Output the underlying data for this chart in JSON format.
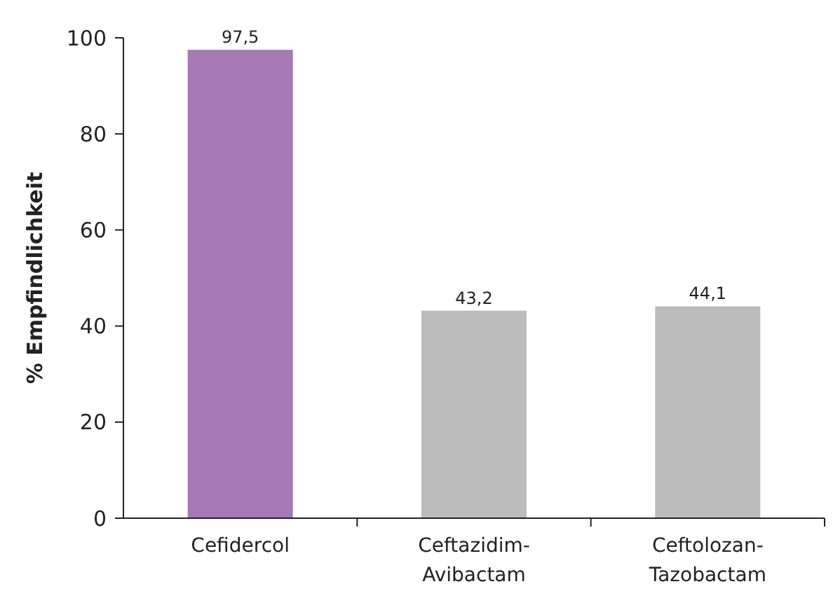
{
  "chart_data": {
    "type": "bar",
    "ylabel": "% Empfindlichkeit",
    "categories": [
      "Cefidercol",
      "Ceftazidim-Avibactam",
      "Ceftolozan-Tazobactam"
    ],
    "values": [
      97.5,
      43.2,
      44.1
    ],
    "colors": [
      "#a678b4",
      "#bcbcbc",
      "#bcbcbc"
    ],
    "value_labels": [
      "97,5",
      "43,2",
      "44,1"
    ],
    "ylim": [
      0,
      100
    ],
    "yticks": [
      0,
      20,
      40,
      60,
      80,
      100
    ],
    "grid": false
  }
}
